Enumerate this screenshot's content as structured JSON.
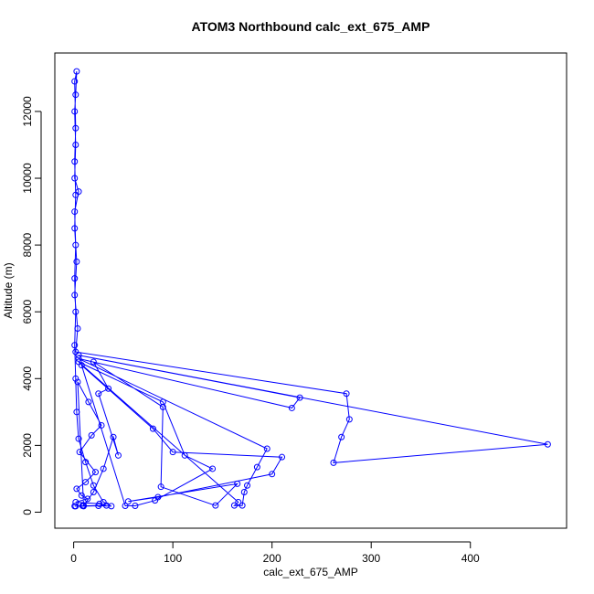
{
  "chart_data": {
    "type": "line",
    "title": "ATOM3 Northbound calc_ext_675_AMP",
    "x_label": "calc_ext_675_AMP",
    "y_label": "Altitude (m)",
    "color": "#0000ff",
    "markers": true,
    "xlim": [
      -19,
      497
    ],
    "ylim": [
      -480,
      13750
    ],
    "xticks": [
      0,
      100,
      200,
      300,
      400
    ],
    "yticks": [
      0,
      2000,
      4000,
      6000,
      8000,
      10000,
      12000
    ],
    "series": [
      {
        "name": "calc_ext_675_AMP",
        "color": "#0000ff",
        "x": [
          2,
          10,
          25,
          38,
          30,
          20,
          12,
          5,
          3,
          2,
          1,
          2,
          1,
          2,
          1,
          5,
          1,
          2,
          1,
          2,
          3,
          1,
          2,
          1,
          2,
          1,
          3,
          1,
          4,
          2,
          275,
          278,
          270,
          262,
          478,
          5,
          228,
          220,
          5,
          195,
          185,
          175,
          172,
          170,
          162,
          166,
          5,
          90,
          112,
          140,
          82,
          62,
          52,
          8,
          80,
          100,
          210,
          200,
          85,
          55,
          165,
          143,
          88,
          90,
          20,
          35,
          25,
          45,
          40,
          30,
          20,
          10,
          4,
          15,
          28,
          18,
          6,
          22,
          12,
          3,
          8,
          14,
          2,
          26,
          33,
          9,
          1
        ],
        "values": [
          180,
          180,
          190,
          180,
          300,
          800,
          1500,
          2200,
          3000,
          4000,
          5000,
          6000,
          7000,
          8000,
          9000,
          9600,
          10000,
          11000,
          12000,
          12500,
          13200,
          12900,
          11500,
          10500,
          9500,
          8500,
          7500,
          6500,
          5500,
          4800,
          3550,
          2780,
          2250,
          1480,
          2030,
          4700,
          3430,
          3120,
          4600,
          1900,
          1350,
          800,
          600,
          200,
          200,
          300,
          4500,
          3300,
          1700,
          1300,
          350,
          190,
          190,
          4400,
          2500,
          1800,
          1650,
          1140,
          450,
          320,
          850,
          200,
          760,
          3150,
          4500,
          3700,
          3550,
          1700,
          2250,
          1300,
          600,
          200,
          3900,
          3300,
          2600,
          2300,
          1800,
          1200,
          900,
          700,
          500,
          400,
          300,
          250,
          200,
          190,
          180
        ]
      }
    ]
  }
}
